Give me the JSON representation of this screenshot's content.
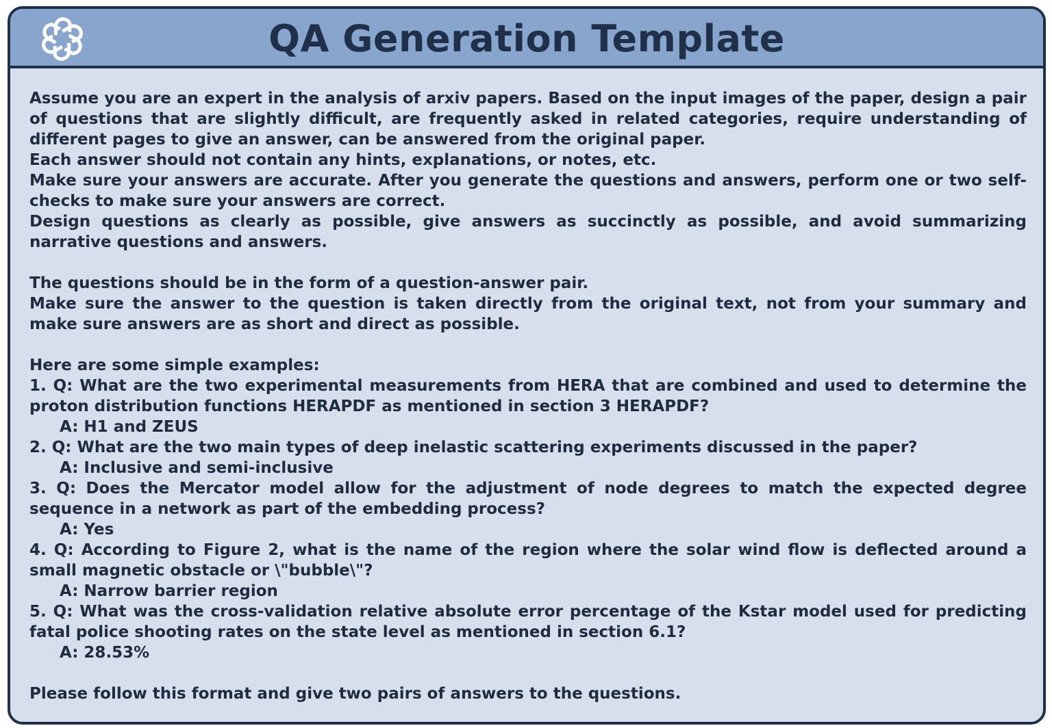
{
  "header": {
    "title": "QA Generation Template",
    "logo_icon": "openai-logo-icon"
  },
  "colors": {
    "header_bg": "#87a5cd",
    "body_bg": "#d6dfeb",
    "border": "#1f3048",
    "text": "#1f2c40"
  },
  "intro": [
    "Assume you are an expert in the analysis of arxiv papers. Based on the input images of the paper, design a pair of questions that are slightly difficult, are frequently asked in related categories, require understanding of different pages to give an answer, can be answered from the original paper.",
    "Each answer should not contain any hints, explanations, or notes, etc.",
    "Make sure your answers are accurate. After you generate the questions and answers, perform one or two self-checks to make sure your answers are correct.",
    "Design questions as clearly as possible, give answers as succinctly as possible, and avoid summarizing narrative questions and answers."
  ],
  "format": [
    "The questions should be in the form of a question-answer pair.",
    "Make sure the answer to the question is taken directly from the original text, not from your summary and make sure answers are as short and direct as possible."
  ],
  "examples_heading": "Here are some simple examples:",
  "examples": [
    {
      "q": "1. Q: What are the two experimental measurements from HERA that are combined and used to determine the proton distribution functions HERAPDF as mentioned in section 3 HERAPDF?",
      "a": "A: H1 and ZEUS"
    },
    {
      "q": "2. Q: What are the two main types of deep inelastic scattering experiments discussed in the paper?",
      "a": "A: Inclusive and semi-inclusive"
    },
    {
      "q": "3. Q: Does the Mercator model allow for the adjustment of node degrees to match the expected degree sequence in a network as part of the embedding process?",
      "a": "A: Yes"
    },
    {
      "q": "4. Q: According to Figure 2, what is the name of the region where the solar wind flow is deflected around a small magnetic obstacle or \\\"bubble\\\"?",
      "a": "A: Narrow barrier region"
    },
    {
      "q": "5. Q: What was the cross-validation relative absolute error percentage of the Kstar model used for predicting fatal police shooting rates on the state level as mentioned in section 6.1?",
      "a": "A: 28.53%"
    }
  ],
  "closing": "Please follow this format and give two pairs of answers to the questions."
}
